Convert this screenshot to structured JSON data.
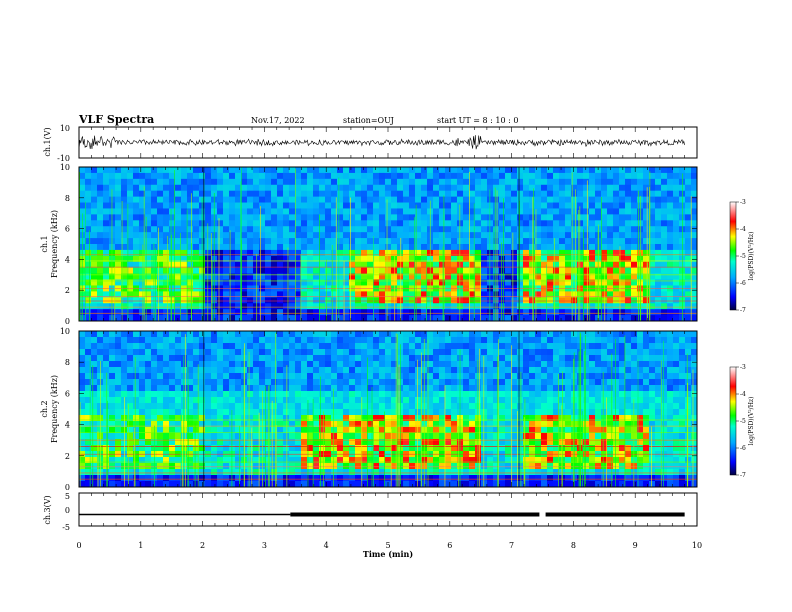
{
  "header": {
    "title": "VLF Spectra",
    "date": "Nov.17, 2022",
    "station": "station=OUJ",
    "start_ut": "start  UT =  8 : 10 : 0"
  },
  "chart_data": [
    {
      "type": "line",
      "panel": "ch1-waveform",
      "ylabel": "ch.1(V)",
      "ylim": [
        -10,
        10
      ],
      "ytick_labels": [
        "10",
        "-10"
      ],
      "xlim": [
        0,
        10
      ],
      "description_series": "waveform"
    },
    {
      "type": "heatmap",
      "panel": "ch1-spectrogram",
      "ylabel": "ch.1\nFrequency (kHz)",
      "ylim": [
        0,
        10
      ],
      "ytick_labels": [
        "0",
        "2",
        "4",
        "6",
        "8",
        "10"
      ],
      "xlim": [
        0,
        10
      ],
      "colorbar": {
        "label": "log(PSD)(V²/Hz)",
        "range": [
          -7,
          -3
        ],
        "tick_labels": [
          "-3",
          "-4",
          "-5",
          "-6",
          "-7"
        ]
      },
      "quiet_intervals_min": [
        [
          2.02,
          3.55
        ],
        [
          6.48,
          7.12
        ]
      ],
      "active_band_intervals_min": [
        [
          4.35,
          6.5
        ],
        [
          7.15,
          9.2
        ]
      ]
    },
    {
      "type": "heatmap",
      "panel": "ch2-spectrogram",
      "ylabel": "ch.2\nFrequency (kHz)",
      "ylim": [
        0,
        10
      ],
      "ytick_labels": [
        "0",
        "2",
        "4",
        "6",
        "8",
        "10"
      ],
      "xlim": [
        0,
        10
      ],
      "colorbar": {
        "label": "log(PSD)(V²/Hz)",
        "range": [
          -7,
          -3
        ],
        "tick_labels": [
          "-3",
          "-4",
          "-5",
          "-6",
          "-7"
        ]
      },
      "active_band_intervals_min": [
        [
          3.6,
          4.35
        ],
        [
          4.4,
          6.5
        ],
        [
          7.15,
          9.2
        ]
      ]
    },
    {
      "type": "line",
      "panel": "ch3",
      "ylabel": "ch.3(V)",
      "ylim": [
        -5,
        5
      ],
      "ytick_labels": [
        "5",
        "0",
        "-5"
      ],
      "xlim": [
        0,
        10
      ],
      "segments": [
        {
          "x": [
            0,
            3.42
          ],
          "y": -1.5
        },
        {
          "x": [
            3.42,
            7.45
          ],
          "y": -1.5,
          "thick": true
        },
        {
          "x": [
            7.55,
            9.8
          ],
          "y": -1.5,
          "thick": true
        }
      ]
    }
  ],
  "xaxis": {
    "label": "Time (min)",
    "tick_labels": [
      "0",
      "1",
      "2",
      "3",
      "4",
      "5",
      "6",
      "7",
      "8",
      "9",
      "10"
    ]
  }
}
